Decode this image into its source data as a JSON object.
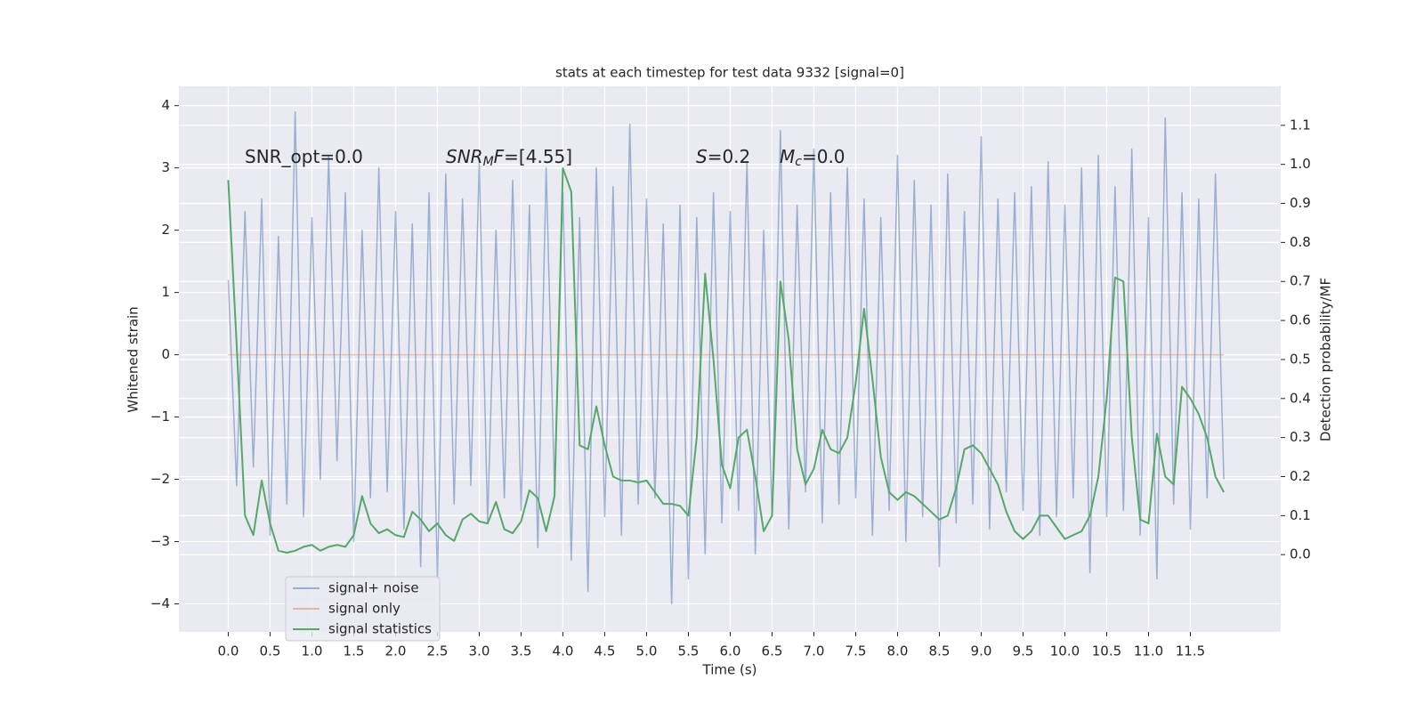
{
  "chart_data": {
    "type": "line",
    "title": "stats at each timestep for test data 9332 [signal=0]",
    "xlabel": "Time (s)",
    "ylabel": "Whitened strain",
    "y2label": "Detection probability/MF",
    "grid": true,
    "legend": "lower left",
    "x": [
      0.0,
      0.1,
      0.2,
      0.3,
      0.4,
      0.5,
      0.6,
      0.7,
      0.8,
      0.9,
      1.0,
      1.1,
      1.2,
      1.3,
      1.4,
      1.5,
      1.6,
      1.7,
      1.8,
      1.9,
      2.0,
      2.1,
      2.2,
      2.3,
      2.4,
      2.5,
      2.6,
      2.7,
      2.8,
      2.9,
      3.0,
      3.1,
      3.2,
      3.3,
      3.4,
      3.5,
      3.6,
      3.7,
      3.8,
      3.9,
      4.0,
      4.1,
      4.2,
      4.3,
      4.4,
      4.5,
      4.6,
      4.7,
      4.8,
      4.9,
      5.0,
      5.1,
      5.2,
      5.3,
      5.4,
      5.5,
      5.6,
      5.7,
      5.8,
      5.9,
      6.0,
      6.1,
      6.2,
      6.3,
      6.4,
      6.5,
      6.6,
      6.7,
      6.8,
      6.9,
      7.0,
      7.1,
      7.2,
      7.3,
      7.4,
      7.5,
      7.6,
      7.7,
      7.8,
      7.9,
      8.0,
      8.1,
      8.2,
      8.3,
      8.4,
      8.5,
      8.6,
      8.7,
      8.8,
      8.9,
      9.0,
      9.1,
      9.2,
      9.3,
      9.4,
      9.5,
      9.6,
      9.7,
      9.8,
      9.9,
      10.0,
      10.1,
      10.2,
      10.3,
      10.4,
      10.5,
      10.6,
      10.7,
      10.8,
      10.9,
      11.0,
      11.1,
      11.2,
      11.3,
      11.4,
      11.5,
      11.6,
      11.7,
      11.8,
      11.9
    ],
    "series": [
      {
        "name": "signal+ noise",
        "color": "#4c72b0",
        "values": [
          1.2,
          -2.1,
          2.3,
          -1.8,
          2.5,
          -2.9,
          1.9,
          -2.4,
          3.9,
          -2.6,
          2.2,
          -2.0,
          3.2,
          -1.7,
          2.6,
          -3.0,
          2.0,
          -2.3,
          3.0,
          -2.2,
          2.3,
          -2.8,
          2.1,
          -3.4,
          2.6,
          -3.6,
          2.9,
          -2.4,
          2.5,
          -2.1,
          3.1,
          -2.7,
          2.0,
          -2.3,
          2.8,
          -2.5,
          2.4,
          -3.1,
          3.0,
          -2.2,
          2.6,
          -3.3,
          2.2,
          -3.8,
          3.0,
          -2.6,
          2.7,
          -2.9,
          3.7,
          -2.4,
          2.5,
          -2.3,
          2.1,
          -4.0,
          2.4,
          -3.6,
          2.2,
          -3.2,
          2.6,
          -2.7,
          2.3,
          -2.5,
          3.1,
          -3.2,
          2.0,
          -2.6,
          3.6,
          -2.8,
          2.4,
          -2.2,
          3.3,
          -2.7,
          2.6,
          -2.4,
          3.0,
          -2.3,
          2.5,
          -2.9,
          2.2,
          -2.5,
          3.2,
          -3.0,
          2.8,
          -2.6,
          2.4,
          -3.4,
          2.9,
          -2.7,
          2.3,
          -2.4,
          3.5,
          -2.8,
          2.5,
          -2.2,
          2.6,
          -2.5,
          2.7,
          -2.9,
          3.1,
          -2.6,
          2.4,
          -2.3,
          3.0,
          -3.5,
          3.2,
          -2.6,
          2.7,
          -2.5,
          3.3,
          -2.9,
          2.2,
          -3.6,
          3.8,
          -2.4,
          2.6,
          -2.8,
          2.5,
          -2.3,
          2.9,
          -2.0
        ]
      },
      {
        "name": "signal only",
        "color": "#dd8452",
        "values": [
          0,
          0,
          0,
          0,
          0,
          0,
          0,
          0,
          0,
          0,
          0,
          0,
          0,
          0,
          0,
          0,
          0,
          0,
          0,
          0,
          0,
          0,
          0,
          0,
          0,
          0,
          0,
          0,
          0,
          0,
          0,
          0,
          0,
          0,
          0,
          0,
          0,
          0,
          0,
          0,
          0,
          0,
          0,
          0,
          0,
          0,
          0,
          0,
          0,
          0,
          0,
          0,
          0,
          0,
          0,
          0,
          0,
          0,
          0,
          0,
          0,
          0,
          0,
          0,
          0,
          0,
          0,
          0,
          0,
          0,
          0,
          0,
          0,
          0,
          0,
          0,
          0,
          0,
          0,
          0,
          0,
          0,
          0,
          0,
          0,
          0,
          0,
          0,
          0,
          0,
          0,
          0,
          0,
          0,
          0,
          0,
          0,
          0,
          0,
          0,
          0,
          0,
          0,
          0,
          0,
          0,
          0,
          0,
          0,
          0,
          0,
          0,
          0,
          0,
          0,
          0,
          0,
          0,
          0,
          0
        ]
      },
      {
        "name": "signal statistics",
        "color": "#55a868",
        "axis": "y2",
        "values": [
          0.96,
          0.54,
          0.1,
          0.05,
          0.19,
          0.08,
          0.01,
          0.005,
          0.01,
          0.02,
          0.025,
          0.01,
          0.02,
          0.025,
          0.02,
          0.05,
          0.15,
          0.08,
          0.055,
          0.065,
          0.05,
          0.045,
          0.11,
          0.09,
          0.06,
          0.08,
          0.05,
          0.035,
          0.09,
          0.105,
          0.085,
          0.08,
          0.135,
          0.065,
          0.055,
          0.085,
          0.165,
          0.145,
          0.06,
          0.15,
          0.99,
          0.93,
          0.28,
          0.27,
          0.38,
          0.28,
          0.2,
          0.19,
          0.19,
          0.185,
          0.19,
          0.16,
          0.13,
          0.13,
          0.125,
          0.1,
          0.3,
          0.72,
          0.5,
          0.23,
          0.17,
          0.3,
          0.32,
          0.2,
          0.06,
          0.1,
          0.7,
          0.55,
          0.27,
          0.18,
          0.22,
          0.32,
          0.27,
          0.26,
          0.3,
          0.44,
          0.63,
          0.45,
          0.25,
          0.16,
          0.14,
          0.16,
          0.15,
          0.13,
          0.11,
          0.09,
          0.1,
          0.17,
          0.27,
          0.28,
          0.26,
          0.22,
          0.18,
          0.11,
          0.06,
          0.04,
          0.06,
          0.1,
          0.1,
          0.07,
          0.04,
          0.05,
          0.06,
          0.1,
          0.2,
          0.4,
          0.71,
          0.7,
          0.3,
          0.09,
          0.08,
          0.31,
          0.2,
          0.18,
          0.43,
          0.4,
          0.36,
          0.3,
          0.2,
          0.16
        ]
      }
    ],
    "xlim": [
      -0.59,
      12.58
    ],
    "xticks": [
      {
        "value": 0,
        "label": "0.0"
      },
      0.5,
      {
        "value": 1,
        "label": "1.0"
      },
      1.5,
      {
        "value": 2,
        "label": "2.0"
      },
      2.5,
      {
        "value": 3,
        "label": "3.0"
      },
      3.5,
      {
        "value": 4,
        "label": "4.0"
      },
      4.5,
      {
        "value": 5,
        "label": "5.0"
      },
      5.5,
      {
        "value": 6,
        "label": "6.0"
      },
      6.5,
      {
        "value": 7,
        "label": "7.0"
      },
      7.5,
      {
        "value": 8,
        "label": "8.0"
      },
      8.5,
      {
        "value": 9,
        "label": "9.0"
      },
      9.5,
      {
        "value": 10,
        "label": "10.0"
      },
      10.5,
      {
        "value": 11,
        "label": "11.0"
      },
      11.5
    ],
    "ylim": [
      -4.45,
      4.31
    ],
    "yticks": [
      {
        "value": -4,
        "label": "−4"
      },
      {
        "value": -3,
        "label": "−3"
      },
      {
        "value": -2,
        "label": "−2"
      },
      {
        "value": -1,
        "label": "−1"
      },
      0,
      1,
      2,
      3,
      4
    ],
    "y2lim": [
      -0.198,
      1.2
    ],
    "y2ticks": [
      {
        "value": 0,
        "label": "0.0"
      },
      0.1,
      0.2,
      0.3,
      0.4,
      0.5,
      0.6,
      0.7,
      0.8,
      0.9,
      {
        "value": 1,
        "label": "1.0"
      },
      1.1
    ],
    "annotations": [
      {
        "parts": [
          {
            "text": "SNR_opt=0.0"
          }
        ]
      },
      {
        "parts": [
          {
            "text": "SNR",
            "italic": true
          },
          {
            "text": "M",
            "italic": true,
            "sub": true
          },
          {
            "text": "F",
            "italic": true
          },
          {
            "text": "=[4.55]"
          }
        ]
      },
      {
        "parts": [
          {
            "text": "S",
            "italic": true
          },
          {
            "text": "=0.2"
          }
        ]
      },
      {
        "parts": [
          {
            "text": "M",
            "italic": true
          },
          {
            "text": "c",
            "italic": true,
            "sub": true
          },
          {
            "text": "=0.0"
          }
        ]
      }
    ]
  }
}
